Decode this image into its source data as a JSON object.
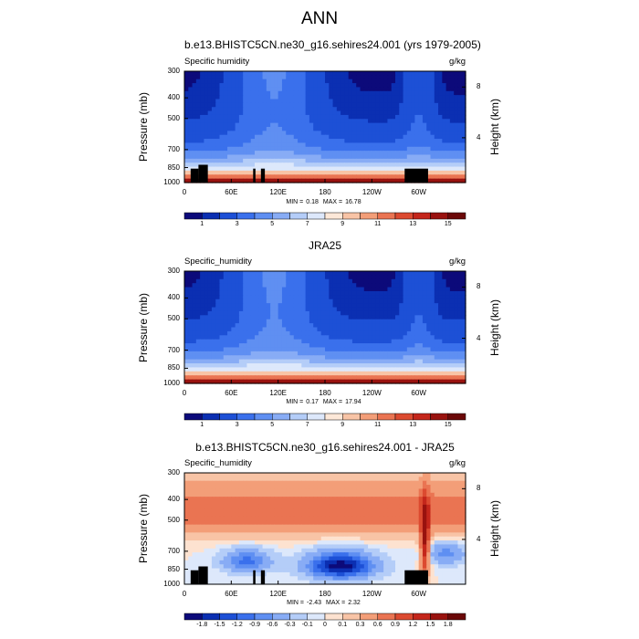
{
  "page": {
    "title": "ANN"
  },
  "palette_main": [
    "#0c0a7a",
    "#0b2fb2",
    "#1d50d6",
    "#3a70ec",
    "#5f8ff2",
    "#88acf5",
    "#b4cdf8",
    "#dde8fb",
    "#fde8d8",
    "#f8c4a6",
    "#f39e78",
    "#ea7452",
    "#dc4a30",
    "#c4261b",
    "#99120f",
    "#6b0808"
  ],
  "palette_diff": [
    "#0c0a7a",
    "#0b2fb2",
    "#1d50d6",
    "#3a70ec",
    "#5f8ff2",
    "#88acf5",
    "#b4cdf8",
    "#dde8fb",
    "#fde2d0",
    "#f8c4a6",
    "#f39e78",
    "#ea7452",
    "#dc4a30",
    "#c4261b",
    "#99120f",
    "#6b0808"
  ],
  "panels": [
    {
      "title": "b.e13.BHISTC5CN.ne30_g16.sehires24.001 (yrs 1979-2005)",
      "variable": "Specific humidity",
      "units": "g/kg",
      "min_label": "MIN =",
      "min": "0.18",
      "max_label": "MAX =",
      "max": "16.78",
      "colorbar_ticks": [
        "1",
        "3",
        "5",
        "7",
        "9",
        "11",
        "13",
        "15"
      ]
    },
    {
      "title": "JRA25",
      "variable": "Specific_humidity",
      "units": "g/kg",
      "min_label": "MIN =",
      "min": "0.17",
      "max_label": "MAX =",
      "max": "17.94",
      "colorbar_ticks": [
        "1",
        "3",
        "5",
        "7",
        "9",
        "11",
        "13",
        "15"
      ]
    },
    {
      "title": "b.e13.BHISTC5CN.ne30_g16.sehires24.001 - JRA25",
      "variable": "Specific_humidity",
      "units": "g/kg",
      "min_label": "MIN =",
      "min": "-2.43",
      "max_label": "MAX =",
      "max": "2.32",
      "colorbar_ticks": [
        "-1.8",
        "-1.5",
        "-1.2",
        "-0.9",
        "-0.6",
        "-0.3",
        "-0.1",
        "0",
        "0.1",
        "0.3",
        "0.6",
        "0.9",
        "1.2",
        "1.5",
        "1.8"
      ]
    }
  ],
  "chart_data": {
    "type": "heatmap",
    "ylabel": "Pressure (mb)",
    "y2label": "Height (km)",
    "x_ticks": [
      "0",
      "60E",
      "120E",
      "180",
      "120W",
      "60W"
    ],
    "y_ticks": [
      "300",
      "400",
      "500",
      "700",
      "850",
      "1000"
    ],
    "y2_ticks": [
      "8",
      "4"
    ],
    "x_range": [
      0,
      360
    ],
    "y_range": [
      1000,
      300
    ],
    "y_scale": "log"
  }
}
